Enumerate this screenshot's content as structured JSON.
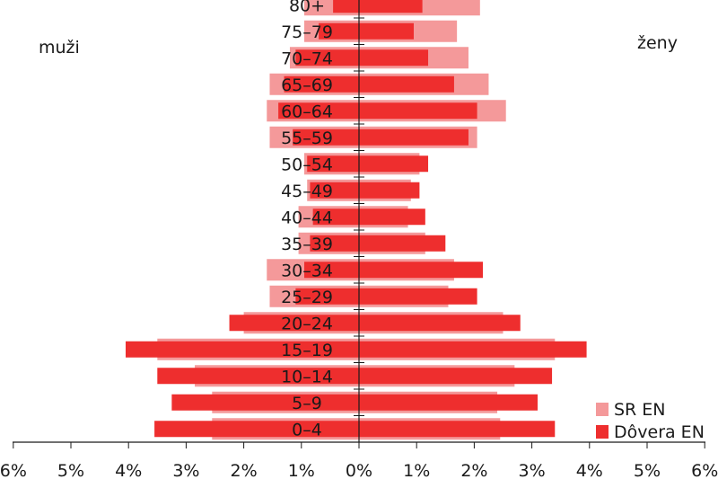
{
  "chart_data": {
    "type": "bar",
    "orientation": "horizontal-population-pyramid",
    "categories": [
      "0–4",
      "5–9",
      "10–14",
      "15–19",
      "20–24",
      "25–29",
      "30–34",
      "35–39",
      "40–44",
      "45–49",
      "50–54",
      "55–59",
      "60–64",
      "65–69",
      "70–74",
      "75–79",
      "80+"
    ],
    "left_label": "muži",
    "right_label": "ženy",
    "x_ticks": [
      "6%",
      "5%",
      "4%",
      "3%",
      "2%",
      "1%",
      "0%",
      "1%",
      "2%",
      "3%",
      "4%",
      "5%",
      "6%"
    ],
    "xlim": [
      -6,
      6
    ],
    "series": [
      {
        "name": "SR EN",
        "color": "#f4999a",
        "male": [
          2.55,
          2.55,
          2.85,
          3.5,
          2.0,
          1.55,
          1.6,
          1.05,
          1.05,
          0.9,
          0.95,
          1.55,
          1.6,
          1.55,
          1.2,
          0.95,
          0.95
        ],
        "female": [
          2.45,
          2.4,
          2.7,
          3.4,
          2.5,
          1.55,
          1.65,
          1.15,
          0.85,
          0.9,
          1.05,
          2.05,
          2.55,
          2.25,
          1.9,
          1.7,
          2.1
        ]
      },
      {
        "name": "Dôvera EN",
        "color": "#ee2e2e",
        "male": [
          3.55,
          3.25,
          3.5,
          4.05,
          2.25,
          1.1,
          0.95,
          0.85,
          0.8,
          0.85,
          0.9,
          1.15,
          1.4,
          1.3,
          1.1,
          0.7,
          0.45
        ],
        "female": [
          3.4,
          3.1,
          3.35,
          3.95,
          2.8,
          2.05,
          2.15,
          1.5,
          1.15,
          1.05,
          1.2,
          1.9,
          2.05,
          1.65,
          1.2,
          0.95,
          1.1
        ]
      }
    ],
    "legend_position": "bottom-right",
    "grid": false
  }
}
